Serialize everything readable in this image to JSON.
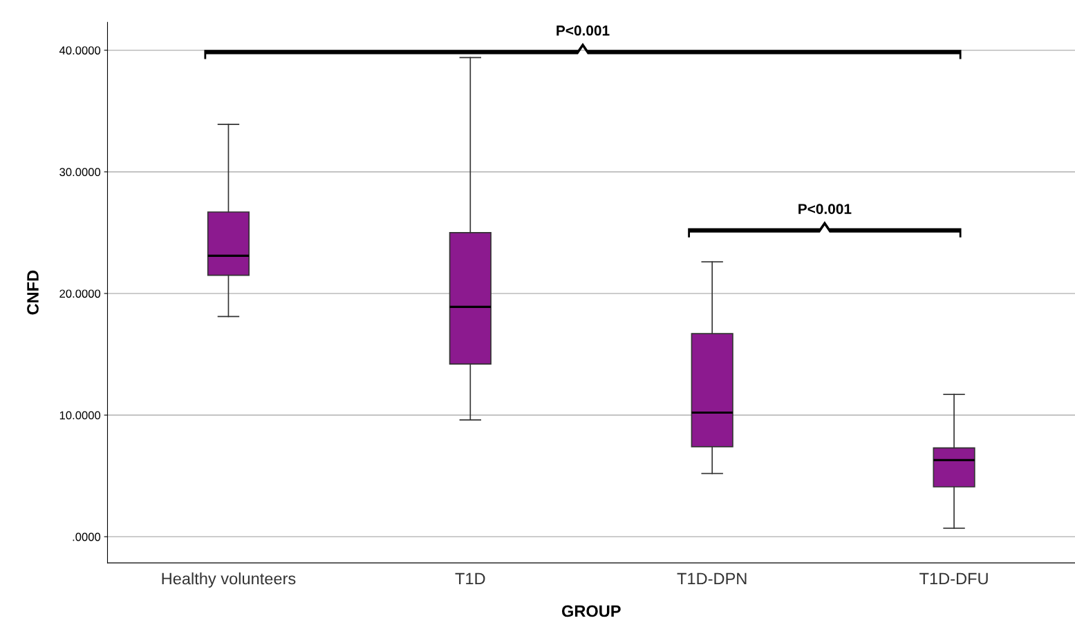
{
  "chart_data": {
    "type": "box",
    "xlabel": "GROUP",
    "ylabel": "CNFD",
    "categories": [
      "Healthy volunteers",
      "T1D",
      "T1D-DPN",
      "T1D-DFU"
    ],
    "series": [
      {
        "color": "#8c1a8f",
        "boxes": [
          {
            "low": 18.1,
            "q1": 21.5,
            "median": 23.1,
            "q3": 26.7,
            "high": 33.9
          },
          {
            "low": 9.6,
            "q1": 14.2,
            "median": 18.9,
            "q3": 25.0,
            "high": 39.4
          },
          {
            "low": 5.2,
            "q1": 7.4,
            "median": 10.2,
            "q3": 16.7,
            "high": 22.6
          },
          {
            "low": 0.7,
            "q1": 4.1,
            "median": 6.3,
            "q3": 7.3,
            "high": 11.7
          }
        ]
      }
    ],
    "ylim": [
      -2.15,
      42.3
    ],
    "yticks": [
      {
        "value": 0,
        "label": ".0000"
      },
      {
        "value": 10,
        "label": "10.0000"
      },
      {
        "value": 20,
        "label": "20.0000"
      },
      {
        "value": 30,
        "label": "30.0000"
      },
      {
        "value": 40,
        "label": "40.0000"
      }
    ],
    "grid": "y",
    "annotations": [
      "P<0.001",
      "P<0.001"
    ]
  }
}
